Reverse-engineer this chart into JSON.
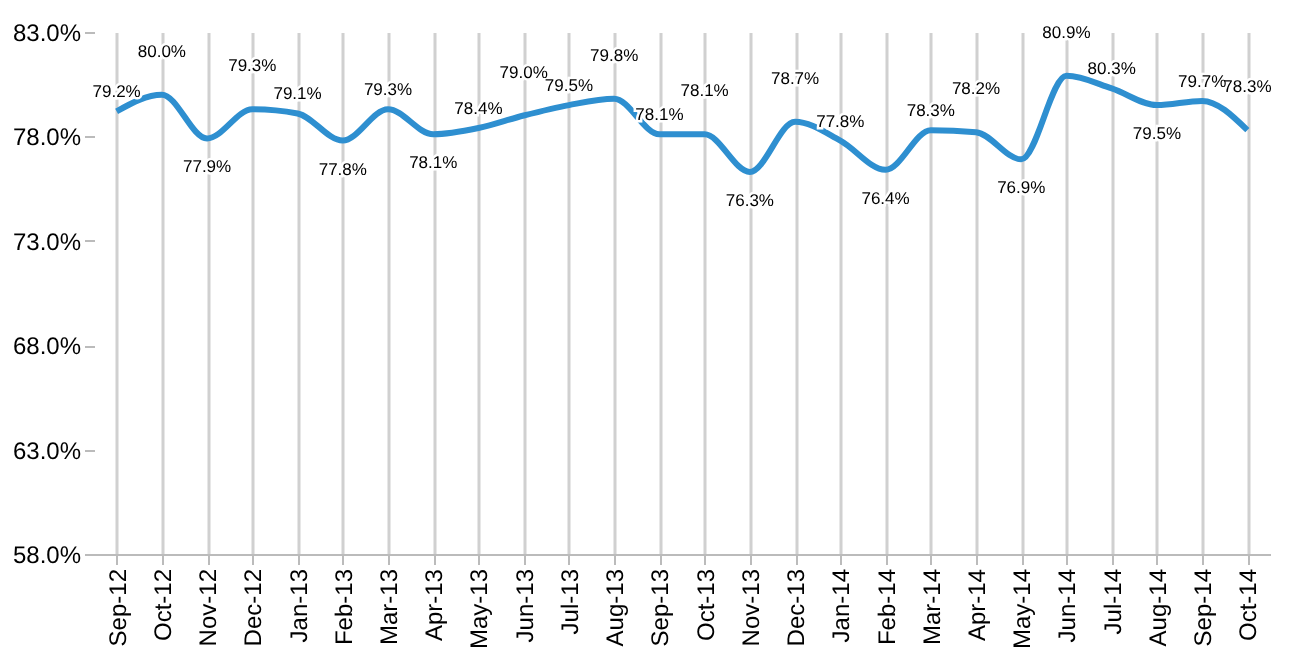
{
  "chart_data": {
    "type": "line",
    "categories": [
      "Sep-12",
      "Oct-12",
      "Nov-12",
      "Dec-12",
      "Jan-13",
      "Feb-13",
      "Mar-13",
      "Apr-13",
      "May-13",
      "Jun-13",
      "Jul-13",
      "Aug-13",
      "Sep-13",
      "Oct-13",
      "Nov-13",
      "Dec-13",
      "Jan-14",
      "Feb-14",
      "Mar-14",
      "Apr-14",
      "May-14",
      "Jun-14",
      "Jul-14",
      "Aug-14",
      "Sep-14",
      "Oct-14"
    ],
    "series": [
      {
        "color": "#2e8fd0",
        "values": [
          79.2,
          80.0,
          77.9,
          79.3,
          79.1,
          77.8,
          79.3,
          78.1,
          78.4,
          79.0,
          79.5,
          79.8,
          78.1,
          78.1,
          76.3,
          78.7,
          77.8,
          76.4,
          78.3,
          78.2,
          76.9,
          80.9,
          80.3,
          79.5,
          79.7,
          78.3
        ],
        "value_labels": [
          "79.2%",
          "80.0%",
          "77.9%",
          "79.3%",
          "79.1%",
          "77.8%",
          "79.3%",
          "78.1%",
          "78.4%",
          "79.0%",
          "79.5%",
          "79.8%",
          "78.1%",
          "78.1%",
          "76.3%",
          "78.7%",
          "77.8%",
          "76.4%",
          "78.3%",
          "78.2%",
          "76.9%",
          "80.9%",
          "80.3%",
          "79.5%",
          "79.7%",
          "78.3%"
        ]
      }
    ],
    "ylim": [
      58,
      83
    ],
    "yticks": [
      {
        "value": 58,
        "label": "58.0%"
      },
      {
        "value": 63,
        "label": "63.0%"
      },
      {
        "value": 68,
        "label": "68.0%"
      },
      {
        "value": 73,
        "label": "73.0%"
      },
      {
        "value": 78,
        "label": "78.0%"
      },
      {
        "value": 83,
        "label": "83.0%"
      }
    ],
    "grid": "x",
    "marker": "none",
    "line_style": "solid"
  }
}
